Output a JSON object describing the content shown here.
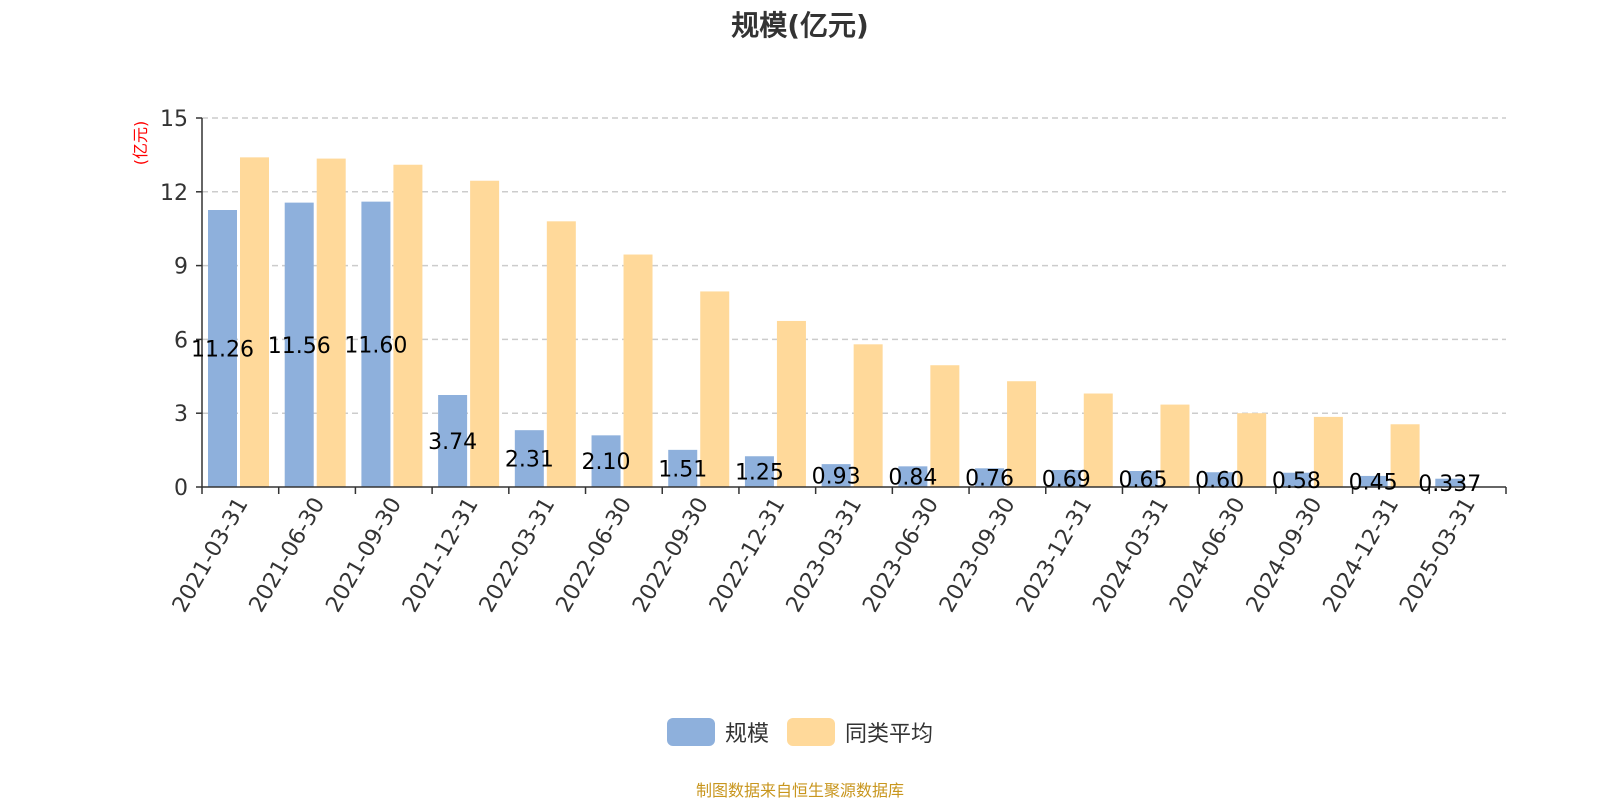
{
  "colors": {
    "series_main": "#8eb0dc",
    "series_avg": "#ffd99a",
    "axis": "#333333",
    "grid": "#cccccc",
    "unit_label": "#ff0000",
    "source_text": "#c8961e"
  },
  "source_text": "制图数据来自恒生聚源数据库",
  "chart_data": {
    "type": "bar",
    "title": "规模(亿元)",
    "ylabel": "(亿元)",
    "ylim": [
      0,
      15
    ],
    "yticks": [
      0,
      3,
      6,
      9,
      12,
      15
    ],
    "grid": true,
    "legend_position": "bottom",
    "categories": [
      "2021-03-31",
      "2021-06-30",
      "2021-09-30",
      "2021-12-31",
      "2022-03-31",
      "2022-06-30",
      "2022-09-30",
      "2022-12-31",
      "2023-03-31",
      "2023-06-30",
      "2023-09-30",
      "2023-12-31",
      "2024-03-31",
      "2024-06-30",
      "2024-09-30",
      "2024-12-31",
      "2025-03-31"
    ],
    "series": [
      {
        "name": "规模",
        "values": [
          11.26,
          11.56,
          11.6,
          3.74,
          2.31,
          2.1,
          1.51,
          1.25,
          0.93,
          0.84,
          0.76,
          0.69,
          0.65,
          0.6,
          0.58,
          0.45,
          0.337
        ],
        "labels": [
          "11.26",
          "11.56",
          "11.60",
          "3.74",
          "2.31",
          "2.10",
          "1.51",
          "1.25",
          "0.93",
          "0.84",
          "0.76",
          "0.69",
          "0.65",
          "0.60",
          "0.58",
          "0.45",
          "0.337"
        ]
      },
      {
        "name": "同类平均",
        "values": [
          13.4,
          13.35,
          13.1,
          12.45,
          10.8,
          9.45,
          7.95,
          6.75,
          5.8,
          4.95,
          4.3,
          3.8,
          3.35,
          3.0,
          2.85,
          2.55,
          0
        ]
      }
    ]
  }
}
